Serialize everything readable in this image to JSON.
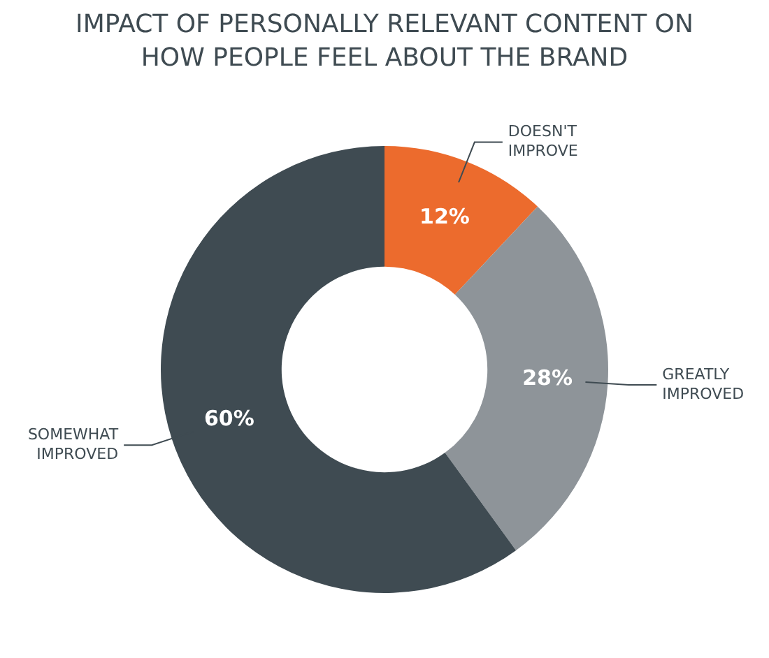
{
  "chart_data": {
    "type": "donut",
    "title": "IMPACT OF PERSONALLY RELEVANT CONTENT ON HOW PEOPLE FEEL ABOUT THE BRAND",
    "categories": [
      "DOESN'T IMPROVE",
      "GREATLY IMPROVED",
      "SOMEWHAT IMPROVED"
    ],
    "values": [
      12,
      28,
      60
    ],
    "colors": [
      "#ec6b2d",
      "#8e9499",
      "#3f4b52"
    ],
    "value_labels": [
      "12%",
      "28%",
      "60%"
    ]
  }
}
